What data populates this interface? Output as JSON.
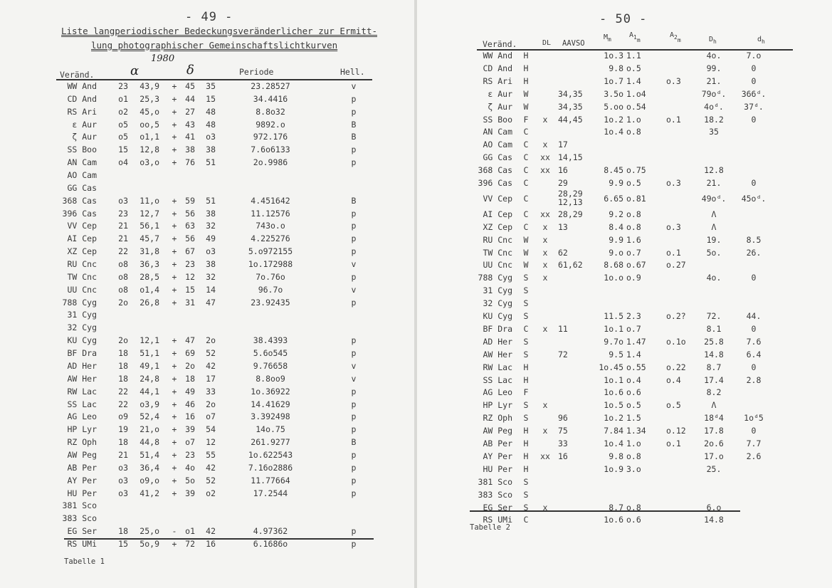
{
  "left_page": {
    "page_number": "- 49 -",
    "title_line1": "Liste langperiodischer Bedeckungsveränderlicher zur Ermitt-",
    "title_line2": "lung photographischer Gemeinschaftslichtkurven",
    "epoch_note": "1980",
    "headers": {
      "variable": "Veränd.",
      "alpha": "α",
      "delta": "δ",
      "period": "Periode",
      "brightness": "Hell."
    },
    "rows": [
      {
        "name": "WW And",
        "ah": "23",
        "am": "43,9",
        "sign": "+",
        "dd": "45",
        "dm": "35",
        "period": "23.28527",
        "hell": "v"
      },
      {
        "name": "CD And",
        "ah": "o1",
        "am": "25,3",
        "sign": "+",
        "dd": "44",
        "dm": "15",
        "period": "34.4416",
        "hell": "p"
      },
      {
        "name": "RS Ari",
        "ah": "o2",
        "am": "45,o",
        "sign": "+",
        "dd": "27",
        "dm": "48",
        "period": "8.8o32",
        "hell": "p"
      },
      {
        "name": "ε Aur",
        "ah": "o5",
        "am": "oo,5",
        "sign": "+",
        "dd": "43",
        "dm": "48",
        "period": "9892.o",
        "hell": "B"
      },
      {
        "name": "ζ Aur",
        "ah": "o5",
        "am": "o1,1",
        "sign": "+",
        "dd": "41",
        "dm": "o3",
        "period": "972.176",
        "hell": "B"
      },
      {
        "name": "SS Boo",
        "ah": "15",
        "am": "12,8",
        "sign": "+",
        "dd": "38",
        "dm": "38",
        "period": "7.6o6133",
        "hell": "p"
      },
      {
        "name": "AN Cam",
        "ah": "o4",
        "am": "o3,o",
        "sign": "+",
        "dd": "76",
        "dm": "51",
        "period": "2o.9986",
        "hell": "p"
      },
      {
        "name": "AO Cam",
        "ah": "",
        "am": "",
        "sign": "",
        "dd": "",
        "dm": "",
        "period": "",
        "hell": ""
      },
      {
        "name": "GG Cas",
        "ah": "",
        "am": "",
        "sign": "",
        "dd": "",
        "dm": "",
        "period": "",
        "hell": ""
      },
      {
        "name": "368 Cas",
        "ah": "o3",
        "am": "11,o",
        "sign": "+",
        "dd": "59",
        "dm": "51",
        "period": "4.451642",
        "hell": "B"
      },
      {
        "name": "396 Cas",
        "ah": "23",
        "am": "12,7",
        "sign": "+",
        "dd": "56",
        "dm": "38",
        "period": "11.12576",
        "hell": "p"
      },
      {
        "name": "VV Cep",
        "ah": "21",
        "am": "56,1",
        "sign": "+",
        "dd": "63",
        "dm": "32",
        "period": "743o.o",
        "hell": "p"
      },
      {
        "name": "AI Cep",
        "ah": "21",
        "am": "45,7",
        "sign": "+",
        "dd": "56",
        "dm": "49",
        "period": "4.225276",
        "hell": "p"
      },
      {
        "name": "XZ Cep",
        "ah": "22",
        "am": "31,8",
        "sign": "+",
        "dd": "67",
        "dm": "o3",
        "period": "5.o972155",
        "hell": "p"
      },
      {
        "name": "RU Cnc",
        "ah": "o8",
        "am": "36,3",
        "sign": "+",
        "dd": "23",
        "dm": "38",
        "period": "1o.172988",
        "hell": "v"
      },
      {
        "name": "TW Cnc",
        "ah": "o8",
        "am": "28,5",
        "sign": "+",
        "dd": "12",
        "dm": "32",
        "period": "7o.76o",
        "hell": "p"
      },
      {
        "name": "UU Cnc",
        "ah": "o8",
        "am": "o1,4",
        "sign": "+",
        "dd": "15",
        "dm": "14",
        "period": "96.7o",
        "hell": "v"
      },
      {
        "name": "788 Cyg",
        "ah": "2o",
        "am": "26,8",
        "sign": "+",
        "dd": "31",
        "dm": "47",
        "period": "23.92435",
        "hell": "p"
      },
      {
        "name": "31 Cyg",
        "ah": "",
        "am": "",
        "sign": "",
        "dd": "",
        "dm": "",
        "period": "",
        "hell": ""
      },
      {
        "name": "32 Cyg",
        "ah": "",
        "am": "",
        "sign": "",
        "dd": "",
        "dm": "",
        "period": "",
        "hell": ""
      },
      {
        "name": "KU Cyg",
        "ah": "2o",
        "am": "12,1",
        "sign": "+",
        "dd": "47",
        "dm": "2o",
        "period": "38.4393",
        "hell": "p"
      },
      {
        "name": "BF Dra",
        "ah": "18",
        "am": "51,1",
        "sign": "+",
        "dd": "69",
        "dm": "52",
        "period": "5.6o545",
        "hell": "p"
      },
      {
        "name": "AD Her",
        "ah": "18",
        "am": "49,1",
        "sign": "+",
        "dd": "2o",
        "dm": "42",
        "period": "9.76658",
        "hell": "v"
      },
      {
        "name": "AW Her",
        "ah": "18",
        "am": "24,8",
        "sign": "+",
        "dd": "18",
        "dm": "17",
        "period": "8.8oo9",
        "hell": "v"
      },
      {
        "name": "RW Lac",
        "ah": "22",
        "am": "44,1",
        "sign": "+",
        "dd": "49",
        "dm": "33",
        "period": "1o.36922",
        "hell": "p"
      },
      {
        "name": "SS Lac",
        "ah": "22",
        "am": "o3,9",
        "sign": "+",
        "dd": "46",
        "dm": "2o",
        "period": "14.41629",
        "hell": "p"
      },
      {
        "name": "AG Leo",
        "ah": "o9",
        "am": "52,4",
        "sign": "+",
        "dd": "16",
        "dm": "o7",
        "period": "3.392498",
        "hell": "p"
      },
      {
        "name": "HP Lyr",
        "ah": "19",
        "am": "21,o",
        "sign": "+",
        "dd": "39",
        "dm": "54",
        "period": "14o.75",
        "hell": "p"
      },
      {
        "name": "RZ Oph",
        "ah": "18",
        "am": "44,8",
        "sign": "+",
        "dd": "o7",
        "dm": "12",
        "period": "261.9277",
        "hell": "B"
      },
      {
        "name": "AW Peg",
        "ah": "21",
        "am": "51,4",
        "sign": "+",
        "dd": "23",
        "dm": "55",
        "period": "1o.622543",
        "hell": "p"
      },
      {
        "name": "AB Per",
        "ah": "o3",
        "am": "36,4",
        "sign": "+",
        "dd": "4o",
        "dm": "42",
        "period": "7.16o2886",
        "hell": "p"
      },
      {
        "name": "AY Per",
        "ah": "o3",
        "am": "o9,o",
        "sign": "+",
        "dd": "5o",
        "dm": "52",
        "period": "11.77664",
        "hell": "p"
      },
      {
        "name": "HU Per",
        "ah": "o3",
        "am": "41,2",
        "sign": "+",
        "dd": "39",
        "dm": "o2",
        "period": "17.2544",
        "hell": "p"
      },
      {
        "name": "381 Sco",
        "ah": "",
        "am": "",
        "sign": "",
        "dd": "",
        "dm": "",
        "period": "",
        "hell": ""
      },
      {
        "name": "383 Sco",
        "ah": "",
        "am": "",
        "sign": "",
        "dd": "",
        "dm": "",
        "period": "",
        "hell": ""
      },
      {
        "name": "EG Ser",
        "ah": "18",
        "am": "25,o",
        "sign": "-",
        "dd": "o1",
        "dm": "42",
        "period": "4.97362",
        "hell": "p"
      },
      {
        "name": "RS UMi",
        "ah": "15",
        "am": "5o,9",
        "sign": "+",
        "dd": "72",
        "dm": "16",
        "period": "6.1686o",
        "hell": "p"
      }
    ],
    "caption": "Tabelle 1"
  },
  "right_page": {
    "page_number": "- 50 -",
    "headers": {
      "variable": "Veränd.",
      "dl": "DL",
      "aavso": "AAVSO",
      "mm": "M",
      "mm_sub": "m",
      "a1": "A",
      "a1_sub": "1",
      "a1_sub2": "m",
      "a2": "A",
      "a2_sub": "2",
      "a2_sub2": "m",
      "Dh": "D",
      "Dh_sub": "h",
      "dh": "d",
      "dh_sub": "h"
    },
    "rows": [
      {
        "name": "WW And",
        "type": "H",
        "dl": "",
        "aavso": "",
        "mm": "1o.3",
        "a1": "1.1",
        "a2": "",
        "Dh": "4o.",
        "dh": "7.o"
      },
      {
        "name": "CD And",
        "type": "H",
        "dl": "",
        "aavso": "",
        "mm": "9.8",
        "a1": "o.5",
        "a2": "",
        "Dh": "99.",
        "dh": "0"
      },
      {
        "name": "RS Ari",
        "type": "H",
        "dl": "",
        "aavso": "",
        "mm": "1o.7",
        "a1": "1.4",
        "a2": "o.3",
        "Dh": "21.",
        "dh": "0"
      },
      {
        "name": "ε Aur",
        "type": "W",
        "dl": "",
        "aavso": "34,35",
        "mm": "3.5o",
        "a1": "1.o4",
        "a2": "",
        "Dh": "79oᵈ.",
        "dh": "366ᵈ."
      },
      {
        "name": "ζ Aur",
        "type": "W",
        "dl": "",
        "aavso": "34,35",
        "mm": "5.oo",
        "a1": "o.54",
        "a2": "",
        "Dh": "4oᵈ.",
        "dh": "37ᵈ."
      },
      {
        "name": "SS Boo",
        "type": "F",
        "dl": "x",
        "aavso": "44,45",
        "mm": "1o.2",
        "a1": "1.o",
        "a2": "o.1",
        "Dh": "18.2",
        "dh": "0"
      },
      {
        "name": "AN Cam",
        "type": "C",
        "dl": "",
        "aavso": "",
        "mm": "1o.4",
        "a1": "o.8",
        "a2": "",
        "Dh": "35",
        "dh": ""
      },
      {
        "name": "AO Cam",
        "type": "C",
        "dl": "x",
        "aavso": "17",
        "mm": "",
        "a1": "",
        "a2": "",
        "Dh": "",
        "dh": ""
      },
      {
        "name": "GG Cas",
        "type": "C",
        "dl": "xx",
        "aavso": "14,15",
        "mm": "",
        "a1": "",
        "a2": "",
        "Dh": "",
        "dh": ""
      },
      {
        "name": "368 Cas",
        "type": "C",
        "dl": "xx",
        "aavso": "16",
        "mm": "8.45",
        "a1": "o.75",
        "a2": "",
        "Dh": "12.8",
        "dh": ""
      },
      {
        "name": "396 Cas",
        "type": "C",
        "dl": "",
        "aavso": "29",
        "mm": "9.9",
        "a1": "o.5",
        "a2": "o.3",
        "Dh": "21.",
        "dh": "0"
      },
      {
        "name": "VV Cep",
        "type": "C",
        "dl": "",
        "aavso": "28,29\n12,13",
        "mm": "6.65",
        "a1": "o.81",
        "a2": "",
        "Dh": "49oᵈ.",
        "dh": "45oᵈ."
      },
      {
        "name": "AI Cep",
        "type": "C",
        "dl": "xx",
        "aavso": "28,29",
        "mm": "9.2",
        "a1": "o.8",
        "a2": "",
        "Dh": "Λ",
        "dh": ""
      },
      {
        "name": "XZ Cep",
        "type": "C",
        "dl": "x",
        "aavso": "13",
        "mm": "8.4",
        "a1": "o.8",
        "a2": "o.3",
        "Dh": "Λ",
        "dh": ""
      },
      {
        "name": "RU Cnc",
        "type": "W",
        "dl": "x",
        "aavso": "",
        "mm": "9.9",
        "a1": "1.6",
        "a2": "",
        "Dh": "19.",
        "dh": "8.5"
      },
      {
        "name": "TW Cnc",
        "type": "W",
        "dl": "x",
        "aavso": "62",
        "mm": "9.o",
        "a1": "o.7",
        "a2": "o.1",
        "Dh": "5o.",
        "dh": "26."
      },
      {
        "name": "UU Cnc",
        "type": "W",
        "dl": "x",
        "aavso": "61,62",
        "mm": "8.68",
        "a1": "o.67",
        "a2": "o.27",
        "Dh": "",
        "dh": ""
      },
      {
        "name": "788 Cyg",
        "type": "S",
        "dl": "x",
        "aavso": "",
        "mm": "1o.o",
        "a1": "o.9",
        "a2": "",
        "Dh": "4o.",
        "dh": "0"
      },
      {
        "name": "31 Cyg",
        "type": "S",
        "dl": "",
        "aavso": "",
        "mm": "",
        "a1": "",
        "a2": "",
        "Dh": "",
        "dh": ""
      },
      {
        "name": "32 Cyg",
        "type": "S",
        "dl": "",
        "aavso": "",
        "mm": "",
        "a1": "",
        "a2": "",
        "Dh": "",
        "dh": ""
      },
      {
        "name": "KU Cyg",
        "type": "S",
        "dl": "",
        "aavso": "",
        "mm": "11.5",
        "a1": "2.3",
        "a2": "o.2?",
        "Dh": "72.",
        "dh": "44."
      },
      {
        "name": "BF Dra",
        "type": "C",
        "dl": "x",
        "aavso": "11",
        "mm": "1o.1",
        "a1": "o.7",
        "a2": "",
        "Dh": "8.1",
        "dh": "0"
      },
      {
        "name": "AD Her",
        "type": "S",
        "dl": "",
        "aavso": "",
        "mm": "9.7o",
        "a1": "1.47",
        "a2": "o.1o",
        "Dh": "25.8",
        "dh": "7.6"
      },
      {
        "name": "AW Her",
        "type": "S",
        "dl": "",
        "aavso": "72",
        "mm": "9.5",
        "a1": "1.4",
        "a2": "",
        "Dh": "14.8",
        "dh": "6.4"
      },
      {
        "name": "RW Lac",
        "type": "H",
        "dl": "",
        "aavso": "",
        "mm": "1o.45",
        "a1": "o.55",
        "a2": "o.22",
        "Dh": "8.7",
        "dh": "0"
      },
      {
        "name": "SS Lac",
        "type": "H",
        "dl": "",
        "aavso": "",
        "mm": "1o.1",
        "a1": "o.4",
        "a2": "o.4",
        "Dh": "17.4",
        "dh": "2.8"
      },
      {
        "name": "AG Leo",
        "type": "F",
        "dl": "",
        "aavso": "",
        "mm": "1o.6",
        "a1": "o.6",
        "a2": "",
        "Dh": "8.2",
        "dh": ""
      },
      {
        "name": "HP Lyr",
        "type": "S",
        "dl": "x",
        "aavso": "",
        "mm": "1o.5",
        "a1": "o.5",
        "a2": "o.5",
        "Dh": "Λ",
        "dh": ""
      },
      {
        "name": "RZ Oph",
        "type": "S",
        "dl": "",
        "aavso": "96",
        "mm": "1o.2",
        "a1": "1.5",
        "a2": "",
        "Dh": "18ᵈ4",
        "dh": "1oᵈ5"
      },
      {
        "name": "AW Peg",
        "type": "H",
        "dl": "x",
        "aavso": "75",
        "mm": "7.84",
        "a1": "1.34",
        "a2": "o.12",
        "Dh": "17.8",
        "dh": "0"
      },
      {
        "name": "AB Per",
        "type": "H",
        "dl": "",
        "aavso": "33",
        "mm": "1o.4",
        "a1": "1.o",
        "a2": "o.1",
        "Dh": "2o.6",
        "dh": "7.7"
      },
      {
        "name": "AY Per",
        "type": "H",
        "dl": "xx",
        "aavso": "16",
        "mm": "9.8",
        "a1": "o.8",
        "a2": "",
        "Dh": "17.o",
        "dh": "2.6"
      },
      {
        "name": "HU Per",
        "type": "H",
        "dl": "",
        "aavso": "",
        "mm": "1o.9",
        "a1": "3.o",
        "a2": "",
        "Dh": "25.",
        "dh": ""
      },
      {
        "name": "381 Sco",
        "type": "S",
        "dl": "",
        "aavso": "",
        "mm": "",
        "a1": "",
        "a2": "",
        "Dh": "",
        "dh": ""
      },
      {
        "name": "383 Sco",
        "type": "S",
        "dl": "",
        "aavso": "",
        "mm": "",
        "a1": "",
        "a2": "",
        "Dh": "",
        "dh": ""
      },
      {
        "name": "EG Ser",
        "type": "S",
        "dl": "x",
        "aavso": "",
        "mm": "8.7",
        "a1": "o.8",
        "a2": "",
        "Dh": "6.o",
        "dh": ""
      },
      {
        "name": "RS UMi",
        "type": "C",
        "dl": "",
        "aavso": "",
        "mm": "1o.6",
        "a1": "o.6",
        "a2": "",
        "Dh": "14.8",
        "dh": ""
      }
    ],
    "caption": "Tabelle 2"
  }
}
